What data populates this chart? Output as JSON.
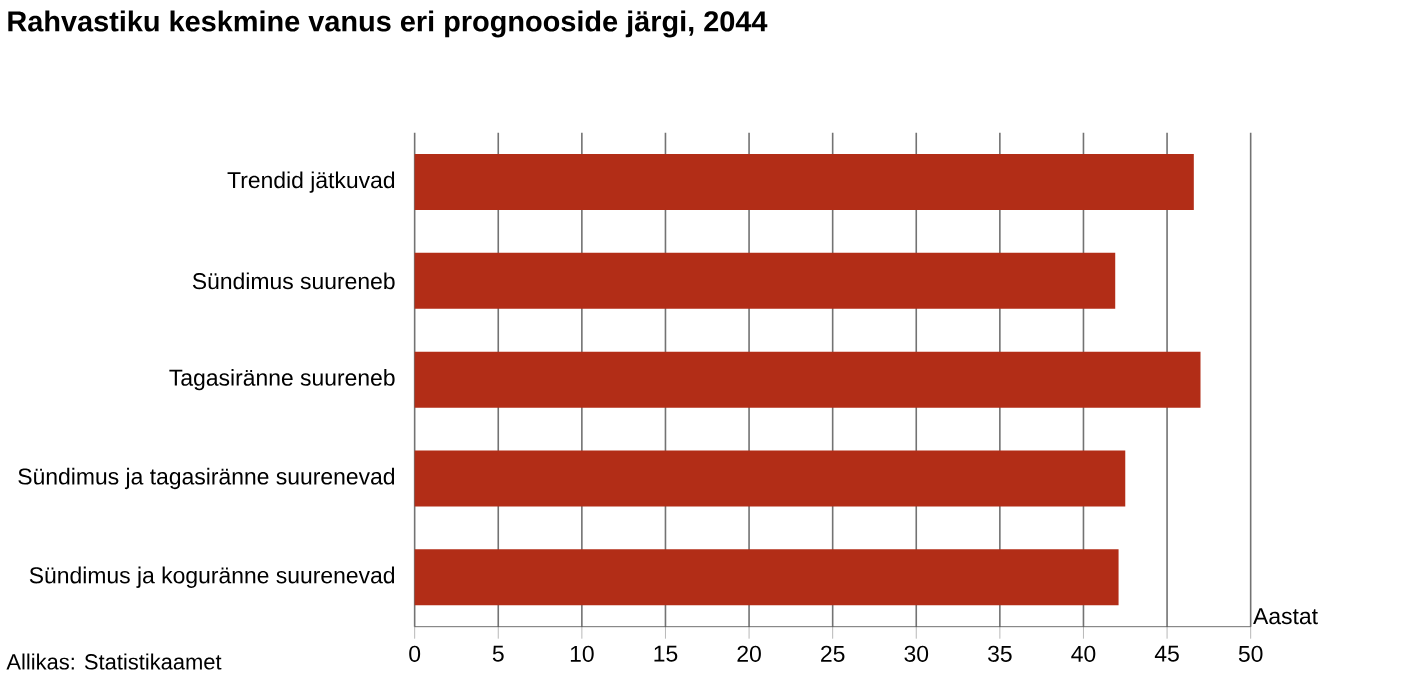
{
  "chart_data": {
    "type": "bar",
    "orientation": "horizontal",
    "title": "Rahvastiku keskmine vanus eri prognooside järgi, 2044",
    "categories": [
      "Trendid jätkuvad",
      "Sündimus suureneb",
      "Tagasiränne suureneb",
      "Sündimus ja tagasiränne suurenevad",
      "Sündimus ja koguränne suurenevad"
    ],
    "values": [
      46.6,
      41.9,
      47.0,
      42.5,
      42.1
    ],
    "color": "#b22d17",
    "xlabel": "Aastat",
    "xlim": [
      0,
      50
    ],
    "xticks": [
      0,
      5,
      10,
      15,
      20,
      25,
      30,
      35,
      40,
      45,
      50
    ],
    "grid": "x",
    "annotations": [
      "Allikas: Statistikaamet"
    ]
  }
}
